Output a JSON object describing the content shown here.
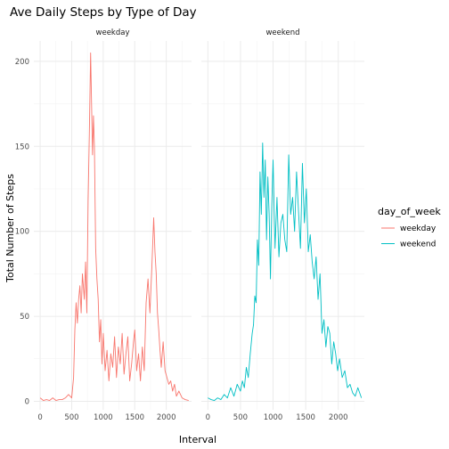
{
  "chart_data": {
    "type": "line",
    "title": "Ave Daily Steps by Type of Day",
    "xlabel": "Interval",
    "ylabel": "Total Number of Steps",
    "xlim": [
      -100,
      2400
    ],
    "ylim": [
      -5,
      212
    ],
    "x_ticks": [
      0,
      500,
      1000,
      1500,
      2000
    ],
    "y_ticks": [
      0,
      50,
      100,
      150,
      200
    ],
    "grid": true,
    "facets": [
      "weekday",
      "weekend"
    ],
    "legend": {
      "title": "day_of_week",
      "position": "right",
      "entries": [
        "weekday",
        "weekend"
      ]
    },
    "series": [
      {
        "name": "weekday",
        "color": "#F8766D",
        "x": [
          0,
          50,
          100,
          150,
          200,
          250,
          300,
          350,
          400,
          450,
          500,
          530,
          550,
          570,
          590,
          610,
          630,
          650,
          670,
          700,
          720,
          740,
          760,
          780,
          800,
          815,
          830,
          845,
          860,
          880,
          900,
          920,
          940,
          960,
          980,
          1000,
          1030,
          1060,
          1090,
          1120,
          1150,
          1180,
          1210,
          1240,
          1270,
          1300,
          1330,
          1360,
          1390,
          1420,
          1450,
          1480,
          1500,
          1530,
          1560,
          1590,
          1620,
          1650,
          1680,
          1710,
          1740,
          1770,
          1800,
          1820,
          1840,
          1860,
          1880,
          1900,
          1920,
          1950,
          1980,
          2010,
          2040,
          2070,
          2100,
          2130,
          2160,
          2200,
          2250,
          2300,
          2355
        ],
        "y": [
          2,
          0.5,
          1,
          0.5,
          2,
          0.5,
          1,
          1,
          2,
          4,
          2,
          14,
          42,
          58,
          46,
          60,
          68,
          52,
          75,
          60,
          82,
          52,
          118,
          158,
          205,
          175,
          145,
          168,
          150,
          90,
          72,
          60,
          35,
          48,
          22,
          40,
          18,
          30,
          12,
          28,
          20,
          38,
          14,
          32,
          22,
          40,
          16,
          28,
          38,
          12,
          22,
          35,
          42,
          18,
          28,
          12,
          32,
          18,
          58,
          72,
          52,
          78,
          108,
          88,
          75,
          52,
          42,
          30,
          20,
          35,
          18,
          14,
          10,
          12,
          6,
          10,
          3,
          6,
          2,
          1,
          0.5
        ]
      },
      {
        "name": "weekend",
        "color": "#00BFC4",
        "x": [
          0,
          50,
          100,
          150,
          200,
          250,
          300,
          350,
          400,
          450,
          500,
          530,
          560,
          590,
          620,
          650,
          680,
          700,
          720,
          740,
          760,
          780,
          800,
          820,
          840,
          860,
          880,
          900,
          920,
          940,
          960,
          980,
          1000,
          1030,
          1060,
          1090,
          1120,
          1150,
          1180,
          1210,
          1240,
          1270,
          1300,
          1330,
          1360,
          1390,
          1420,
          1450,
          1480,
          1510,
          1540,
          1570,
          1600,
          1630,
          1660,
          1690,
          1720,
          1750,
          1780,
          1810,
          1840,
          1870,
          1900,
          1930,
          1960,
          1990,
          2020,
          2060,
          2100,
          2140,
          2180,
          2220,
          2260,
          2300,
          2355
        ],
        "y": [
          2,
          1,
          0.5,
          2,
          1,
          4,
          2,
          8,
          3,
          10,
          6,
          12,
          8,
          20,
          14,
          28,
          40,
          45,
          62,
          58,
          95,
          80,
          135,
          110,
          152,
          120,
          142,
          95,
          132,
          110,
          72,
          115,
          142,
          90,
          120,
          85,
          105,
          110,
          95,
          88,
          145,
          110,
          120,
          100,
          135,
          112,
          90,
          140,
          105,
          125,
          88,
          98,
          82,
          72,
          85,
          60,
          75,
          40,
          48,
          32,
          44,
          40,
          22,
          35,
          28,
          18,
          25,
          14,
          18,
          8,
          10,
          5,
          3,
          8,
          2
        ]
      }
    ]
  }
}
